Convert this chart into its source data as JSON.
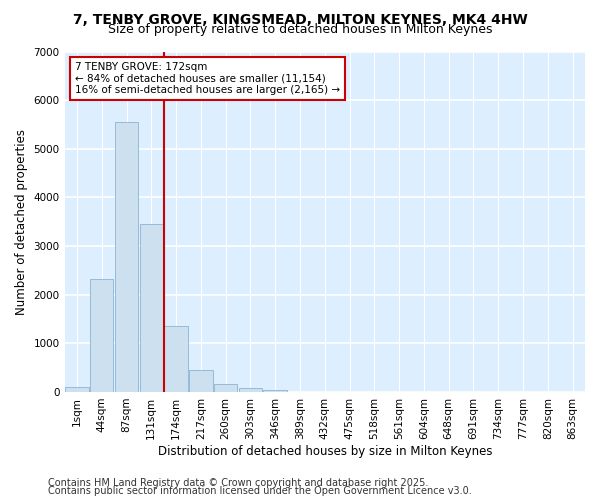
{
  "title_line1": "7, TENBY GROVE, KINGSMEAD, MILTON KEYNES, MK4 4HW",
  "title_line2": "Size of property relative to detached houses in Milton Keynes",
  "xlabel": "Distribution of detached houses by size in Milton Keynes",
  "ylabel": "Number of detached properties",
  "footnote1": "Contains HM Land Registry data © Crown copyright and database right 2025.",
  "footnote2": "Contains public sector information licensed under the Open Government Licence v3.0.",
  "bar_labels": [
    "1sqm",
    "44sqm",
    "87sqm",
    "131sqm",
    "174sqm",
    "217sqm",
    "260sqm",
    "303sqm",
    "346sqm",
    "389sqm",
    "432sqm",
    "475sqm",
    "518sqm",
    "561sqm",
    "604sqm",
    "648sqm",
    "691sqm",
    "734sqm",
    "777sqm",
    "820sqm",
    "863sqm"
  ],
  "bar_values": [
    100,
    2320,
    5560,
    3450,
    1350,
    460,
    170,
    90,
    50,
    0,
    0,
    0,
    0,
    0,
    0,
    0,
    0,
    0,
    0,
    0,
    0
  ],
  "bar_color": "#cce0f0",
  "bar_edge_color": "#8ab4d4",
  "bg_color": "#ddeeff",
  "fig_bg_color": "#ffffff",
  "grid_color": "#ffffff",
  "vline_color": "#cc0000",
  "vline_x": 4.0,
  "annotation_text": "7 TENBY GROVE: 172sqm\n← 84% of detached houses are smaller (11,154)\n16% of semi-detached houses are larger (2,165) →",
  "annotation_box_color": "#cc0000",
  "ylim": [
    0,
    7000
  ],
  "yticks": [
    0,
    1000,
    2000,
    3000,
    4000,
    5000,
    6000,
    7000
  ],
  "title_fontsize": 10,
  "subtitle_fontsize": 9,
  "axis_label_fontsize": 8.5,
  "tick_fontsize": 7.5,
  "annotation_fontsize": 7.5,
  "footnote_fontsize": 7
}
